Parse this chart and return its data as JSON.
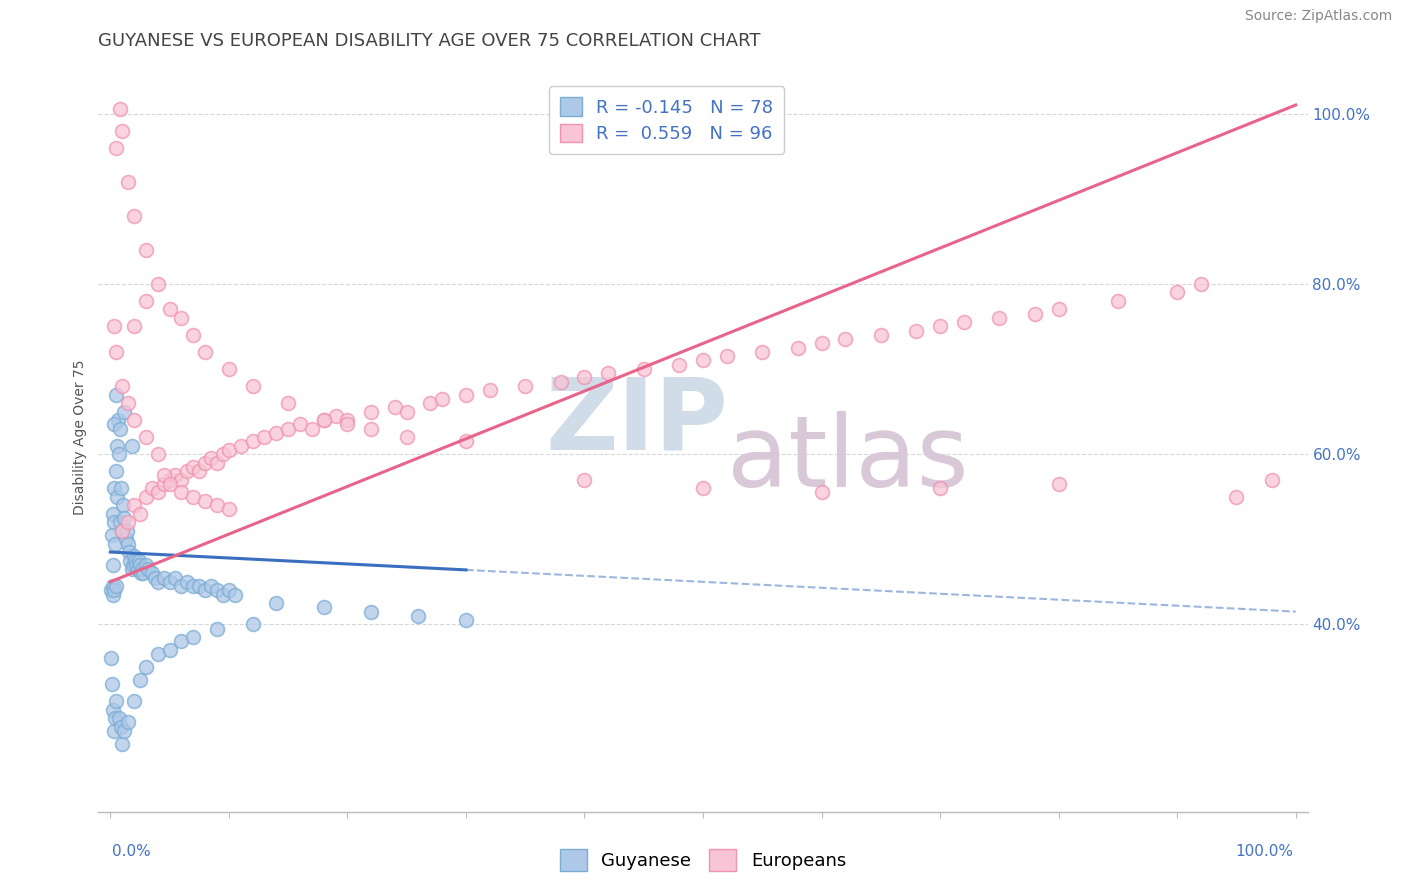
{
  "title": "GUYANESE VS EUROPEAN DISABILITY AGE OVER 75 CORRELATION CHART",
  "source": "Source: ZipAtlas.com",
  "ylabel": "Disability Age Over 75",
  "guyanese_R": -0.145,
  "guyanese_N": 78,
  "european_R": 0.559,
  "european_N": 96,
  "guyanese_color_fill": "#aec8e8",
  "guyanese_color_edge": "#7aadd4",
  "european_color_fill": "#f7c5d5",
  "european_color_edge": "#f093b0",
  "guyanese_line_color": "#3a6fbf",
  "european_line_color": "#e8648a",
  "background_color": "#ffffff",
  "grid_color": "#d8d8d8",
  "watermark_zip_color": "#d0dce8",
  "watermark_atlas_color": "#d8c8d8",
  "ylim_bottom": 18.0,
  "ylim_top": 106.0,
  "xlim_left": -1.0,
  "xlim_right": 101.0,
  "ytick_positions": [
    40.0,
    60.0,
    80.0,
    100.0
  ],
  "ytick_labels": [
    "40.0%",
    "60.0%",
    "80.0%",
    "100.0%"
  ],
  "title_color": "#444444",
  "axis_label_color": "#555555",
  "tick_color": "#4472C4",
  "legend_text_color": "#4472C4",
  "source_color": "#888888",
  "guyanese_points": [
    [
      0.15,
      50.5
    ],
    [
      0.2,
      47.0
    ],
    [
      0.25,
      53.0
    ],
    [
      0.3,
      56.0
    ],
    [
      0.35,
      52.0
    ],
    [
      0.4,
      49.5
    ],
    [
      0.5,
      58.0
    ],
    [
      0.55,
      55.0
    ],
    [
      0.6,
      61.0
    ],
    [
      0.65,
      64.0
    ],
    [
      0.7,
      60.0
    ],
    [
      0.8,
      52.0
    ],
    [
      0.9,
      56.0
    ],
    [
      1.0,
      51.0
    ],
    [
      1.1,
      54.0
    ],
    [
      1.2,
      52.5
    ],
    [
      1.3,
      50.0
    ],
    [
      1.4,
      51.0
    ],
    [
      1.5,
      49.5
    ],
    [
      1.6,
      48.5
    ],
    [
      1.7,
      47.5
    ],
    [
      1.8,
      46.5
    ],
    [
      1.9,
      47.0
    ],
    [
      2.0,
      48.0
    ],
    [
      2.1,
      47.5
    ],
    [
      2.2,
      47.0
    ],
    [
      2.3,
      46.5
    ],
    [
      2.4,
      47.5
    ],
    [
      2.5,
      47.0
    ],
    [
      2.6,
      46.0
    ],
    [
      2.7,
      46.5
    ],
    [
      2.8,
      46.0
    ],
    [
      3.0,
      47.0
    ],
    [
      3.2,
      46.5
    ],
    [
      3.5,
      46.0
    ],
    [
      3.8,
      45.5
    ],
    [
      4.0,
      45.0
    ],
    [
      4.5,
      45.5
    ],
    [
      5.0,
      45.0
    ],
    [
      5.5,
      45.5
    ],
    [
      6.0,
      44.5
    ],
    [
      6.5,
      45.0
    ],
    [
      7.0,
      44.5
    ],
    [
      7.5,
      44.5
    ],
    [
      8.0,
      44.0
    ],
    [
      8.5,
      44.5
    ],
    [
      9.0,
      44.0
    ],
    [
      9.5,
      43.5
    ],
    [
      10.0,
      44.0
    ],
    [
      10.5,
      43.5
    ],
    [
      0.1,
      36.0
    ],
    [
      0.15,
      33.0
    ],
    [
      0.2,
      30.0
    ],
    [
      0.3,
      27.5
    ],
    [
      0.4,
      29.0
    ],
    [
      0.5,
      31.0
    ],
    [
      0.7,
      29.0
    ],
    [
      0.9,
      28.0
    ],
    [
      1.0,
      26.0
    ],
    [
      1.2,
      27.5
    ],
    [
      1.5,
      28.5
    ],
    [
      2.0,
      31.0
    ],
    [
      2.5,
      33.5
    ],
    [
      3.0,
      35.0
    ],
    [
      4.0,
      36.5
    ],
    [
      5.0,
      37.0
    ],
    [
      6.0,
      38.0
    ],
    [
      7.0,
      38.5
    ],
    [
      9.0,
      39.5
    ],
    [
      12.0,
      40.0
    ],
    [
      0.3,
      63.5
    ],
    [
      0.5,
      67.0
    ],
    [
      0.8,
      63.0
    ],
    [
      1.2,
      65.0
    ],
    [
      1.8,
      61.0
    ],
    [
      0.1,
      44.0
    ],
    [
      0.2,
      43.5
    ],
    [
      0.25,
      44.5
    ],
    [
      0.35,
      44.0
    ],
    [
      0.45,
      44.5
    ],
    [
      14.0,
      42.5
    ],
    [
      18.0,
      42.0
    ],
    [
      22.0,
      41.5
    ],
    [
      26.0,
      41.0
    ],
    [
      30.0,
      40.5
    ]
  ],
  "european_points": [
    [
      1.0,
      51.0
    ],
    [
      1.5,
      52.0
    ],
    [
      2.0,
      54.0
    ],
    [
      2.5,
      53.0
    ],
    [
      3.0,
      55.0
    ],
    [
      3.5,
      56.0
    ],
    [
      4.0,
      55.5
    ],
    [
      4.5,
      56.5
    ],
    [
      5.0,
      57.0
    ],
    [
      5.5,
      57.5
    ],
    [
      6.0,
      57.0
    ],
    [
      6.5,
      58.0
    ],
    [
      7.0,
      58.5
    ],
    [
      7.5,
      58.0
    ],
    [
      8.0,
      59.0
    ],
    [
      8.5,
      59.5
    ],
    [
      9.0,
      59.0
    ],
    [
      9.5,
      60.0
    ],
    [
      10.0,
      60.5
    ],
    [
      11.0,
      61.0
    ],
    [
      12.0,
      61.5
    ],
    [
      13.0,
      62.0
    ],
    [
      14.0,
      62.5
    ],
    [
      15.0,
      63.0
    ],
    [
      16.0,
      63.5
    ],
    [
      17.0,
      63.0
    ],
    [
      18.0,
      64.0
    ],
    [
      19.0,
      64.5
    ],
    [
      20.0,
      64.0
    ],
    [
      22.0,
      65.0
    ],
    [
      24.0,
      65.5
    ],
    [
      25.0,
      65.0
    ],
    [
      27.0,
      66.0
    ],
    [
      28.0,
      66.5
    ],
    [
      30.0,
      67.0
    ],
    [
      32.0,
      67.5
    ],
    [
      35.0,
      68.0
    ],
    [
      38.0,
      68.5
    ],
    [
      40.0,
      69.0
    ],
    [
      42.0,
      69.5
    ],
    [
      45.0,
      70.0
    ],
    [
      48.0,
      70.5
    ],
    [
      50.0,
      71.0
    ],
    [
      52.0,
      71.5
    ],
    [
      55.0,
      72.0
    ],
    [
      58.0,
      72.5
    ],
    [
      60.0,
      73.0
    ],
    [
      62.0,
      73.5
    ],
    [
      65.0,
      74.0
    ],
    [
      68.0,
      74.5
    ],
    [
      70.0,
      75.0
    ],
    [
      72.0,
      75.5
    ],
    [
      75.0,
      76.0
    ],
    [
      78.0,
      76.5
    ],
    [
      80.0,
      77.0
    ],
    [
      85.0,
      78.0
    ],
    [
      90.0,
      79.0
    ],
    [
      92.0,
      80.0
    ],
    [
      95.0,
      55.0
    ],
    [
      98.0,
      57.0
    ],
    [
      2.0,
      75.0
    ],
    [
      3.0,
      78.0
    ],
    [
      4.0,
      80.0
    ],
    [
      5.0,
      77.0
    ],
    [
      6.0,
      76.0
    ],
    [
      7.0,
      74.0
    ],
    [
      8.0,
      72.0
    ],
    [
      10.0,
      70.0
    ],
    [
      12.0,
      68.0
    ],
    [
      15.0,
      66.0
    ],
    [
      18.0,
      64.0
    ],
    [
      20.0,
      63.5
    ],
    [
      22.0,
      63.0
    ],
    [
      25.0,
      62.0
    ],
    [
      30.0,
      61.5
    ],
    [
      0.5,
      96.0
    ],
    [
      0.8,
      100.5
    ],
    [
      1.0,
      98.0
    ],
    [
      1.5,
      92.0
    ],
    [
      2.0,
      88.0
    ],
    [
      3.0,
      84.0
    ],
    [
      0.3,
      75.0
    ],
    [
      0.5,
      72.0
    ],
    [
      1.0,
      68.0
    ],
    [
      1.5,
      66.0
    ],
    [
      2.0,
      64.0
    ],
    [
      3.0,
      62.0
    ],
    [
      4.0,
      60.0
    ],
    [
      4.5,
      57.5
    ],
    [
      5.0,
      56.5
    ],
    [
      6.0,
      55.5
    ],
    [
      7.0,
      55.0
    ],
    [
      8.0,
      54.5
    ],
    [
      9.0,
      54.0
    ],
    [
      10.0,
      53.5
    ],
    [
      40.0,
      57.0
    ],
    [
      50.0,
      56.0
    ],
    [
      60.0,
      55.5
    ],
    [
      70.0,
      56.0
    ],
    [
      80.0,
      56.5
    ]
  ],
  "guyanese_trendline_x0": 0.0,
  "guyanese_trendline_x_solid_end": 30.0,
  "guyanese_trendline_x_end": 100.0,
  "guyanese_trendline_y0": 48.5,
  "guyanese_trendline_y_end": 41.5,
  "european_trendline_x0": 0.0,
  "european_trendline_x_end": 100.0,
  "european_trendline_y0": 45.0,
  "european_trendline_y_end": 101.0,
  "title_fontsize": 13,
  "axis_label_fontsize": 10,
  "tick_fontsize": 11,
  "legend_fontsize": 13,
  "source_fontsize": 10
}
